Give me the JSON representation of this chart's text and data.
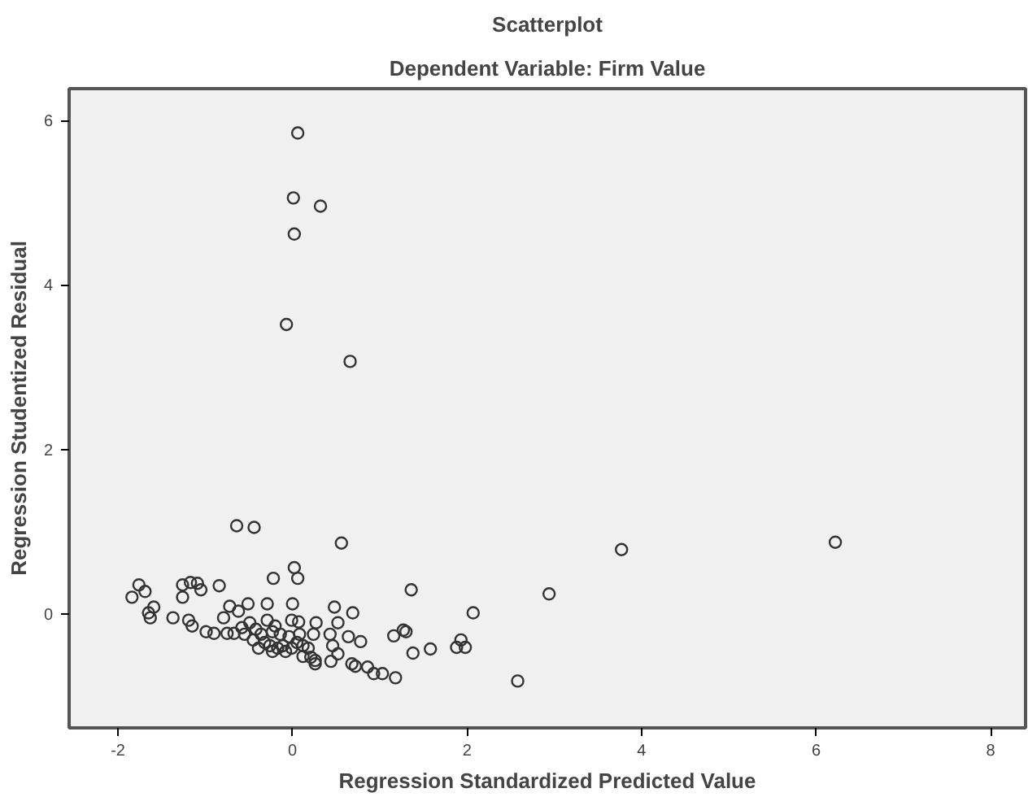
{
  "chart_data": {
    "type": "scatter",
    "title": "Scatterplot",
    "subtitle": "Dependent Variable: Firm Value",
    "xlabel": "Regression Standardized Predicted Value",
    "ylabel": "Regression Studentized Residual",
    "xlim": [
      -2.56,
      8.4
    ],
    "ylim": [
      -1.39,
      6.39
    ],
    "xticks": [
      -2,
      0,
      2,
      4,
      6,
      8
    ],
    "yticks": [
      0,
      2,
      4,
      6
    ],
    "grid": false,
    "marker": "circle",
    "series": [
      {
        "color": "#333333",
        "x": [
          0.06,
          0.01,
          0.32,
          0.02,
          -0.07,
          0.66,
          3.77,
          6.22,
          2.94,
          2.58,
          -0.64,
          -0.44,
          0.56,
          0.02,
          0.06,
          -0.22,
          1.36,
          2.07,
          -1.76,
          -1.69,
          -1.84,
          -1.26,
          -1.17,
          -1.09,
          -1.05,
          -1.26,
          -0.84,
          -1.59,
          -1.65,
          -1.63,
          -1.37,
          -1.19,
          -1.15,
          -0.99,
          -0.9,
          -0.75,
          -0.79,
          -0.72,
          -0.62,
          -0.51,
          -0.29,
          0.0,
          -0.01,
          0.07,
          0.27,
          0.48,
          0.69,
          0.52,
          0.24,
          0.43,
          0.64,
          0.78,
          0.46,
          0.52,
          0.44,
          0.26,
          0.68,
          0.72,
          0.86,
          0.93,
          1.03,
          1.18,
          1.16,
          1.27,
          1.3,
          1.38,
          1.58,
          1.88,
          1.93,
          1.98,
          -0.58,
          -0.55,
          -0.49,
          -0.42,
          -0.45,
          -0.36,
          -0.32,
          -0.26,
          -0.23,
          -0.17,
          -0.11,
          -0.08,
          -0.01,
          0.05,
          0.12,
          0.18,
          0.21,
          0.26,
          -0.29,
          -0.2,
          -0.14,
          -0.04,
          0.08,
          -0.67,
          -0.39,
          -0.23,
          0.12
        ],
        "values": [
          5.85,
          5.06,
          4.96,
          4.62,
          3.52,
          3.07,
          0.78,
          0.87,
          0.24,
          -0.82,
          1.07,
          1.05,
          0.86,
          0.56,
          0.43,
          0.43,
          0.29,
          0.01,
          0.35,
          0.27,
          0.2,
          0.35,
          0.38,
          0.37,
          0.29,
          0.2,
          0.34,
          0.08,
          0.01,
          -0.05,
          -0.05,
          -0.08,
          -0.15,
          -0.22,
          -0.24,
          -0.24,
          -0.05,
          0.09,
          0.03,
          0.12,
          0.12,
          0.12,
          -0.08,
          -0.1,
          -0.11,
          0.08,
          0.01,
          -0.11,
          -0.25,
          -0.25,
          -0.28,
          -0.34,
          -0.39,
          -0.49,
          -0.58,
          -0.61,
          -0.61,
          -0.64,
          -0.65,
          -0.73,
          -0.73,
          -0.78,
          -0.27,
          -0.2,
          -0.22,
          -0.48,
          -0.43,
          -0.41,
          -0.32,
          -0.41,
          -0.17,
          -0.25,
          -0.11,
          -0.19,
          -0.32,
          -0.25,
          -0.35,
          -0.39,
          -0.22,
          -0.42,
          -0.39,
          -0.46,
          -0.42,
          -0.35,
          -0.39,
          -0.42,
          -0.53,
          -0.57,
          -0.08,
          -0.15,
          -0.25,
          -0.28,
          -0.25,
          -0.24,
          -0.42,
          -0.46,
          -0.52
        ]
      }
    ]
  }
}
